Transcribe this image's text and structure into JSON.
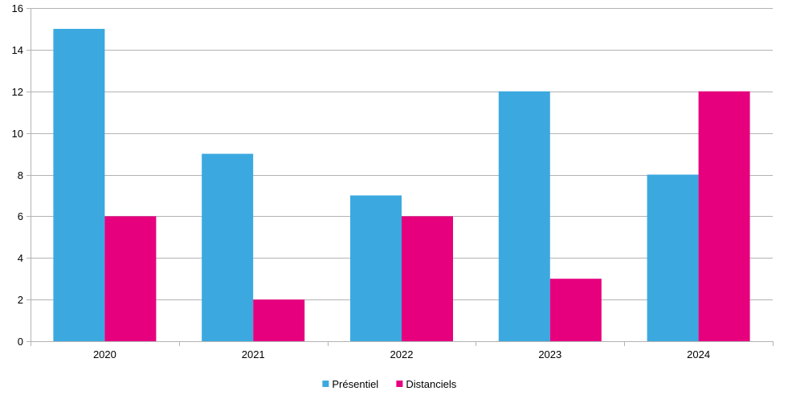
{
  "chart_data": {
    "type": "bar",
    "categories": [
      "2020",
      "2021",
      "2022",
      "2023",
      "2024"
    ],
    "series": [
      {
        "name": "Présentiel",
        "values": [
          15,
          9,
          7,
          12,
          8
        ],
        "color": "#3BA9E0"
      },
      {
        "name": "Distanciels",
        "values": [
          6,
          2,
          6,
          3,
          12
        ],
        "color": "#E6007E"
      }
    ],
    "ylim": [
      0,
      16
    ],
    "yticks": [
      "0",
      "2",
      "4",
      "6",
      "8",
      "10",
      "12",
      "14",
      "16"
    ],
    "grid": true,
    "legend_position": "bottom-center",
    "title": "",
    "xlabel": "",
    "ylabel": ""
  }
}
